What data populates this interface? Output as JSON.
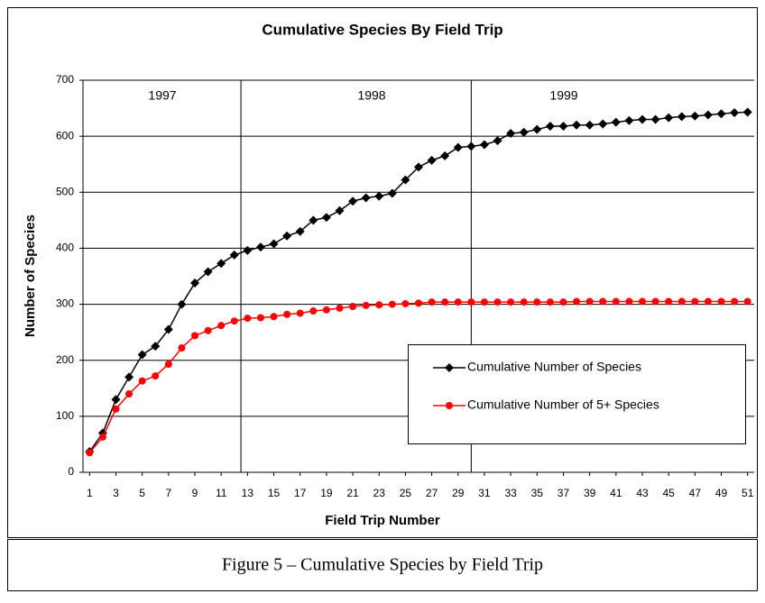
{
  "chart_data": {
    "type": "line",
    "title": "Cumulative Species By Field Trip",
    "x_label": "Field Trip Number",
    "y_label": "Number of Species",
    "caption": "Figure 5 – Cumulative Species by Field Trip",
    "x": [
      1,
      2,
      3,
      4,
      5,
      6,
      7,
      8,
      9,
      10,
      11,
      12,
      13,
      14,
      15,
      16,
      17,
      18,
      19,
      20,
      21,
      22,
      23,
      24,
      25,
      26,
      27,
      28,
      29,
      30,
      31,
      32,
      33,
      34,
      35,
      36,
      37,
      38,
      39,
      40,
      41,
      42,
      43,
      44,
      45,
      46,
      47,
      48,
      49,
      50,
      51
    ],
    "series": [
      {
        "name": "Cumulative Number of Species",
        "color": "#000000",
        "marker": "diamond",
        "values": [
          37,
          70,
          130,
          170,
          210,
          225,
          255,
          300,
          338,
          358,
          373,
          388,
          396,
          402,
          408,
          422,
          430,
          450,
          455,
          467,
          484,
          490,
          493,
          498,
          522,
          545,
          557,
          565,
          580,
          582,
          585,
          592,
          605,
          607,
          612,
          618,
          618,
          620,
          620,
          622,
          625,
          628,
          630,
          630,
          633,
          635,
          636,
          638,
          640,
          642,
          643
        ]
      },
      {
        "name": "Cumulative Number of 5+ Species",
        "color": "#ff0000",
        "marker": "circle",
        "values": [
          35,
          63,
          113,
          140,
          163,
          172,
          193,
          222,
          244,
          253,
          262,
          270,
          275,
          276,
          278,
          282,
          284,
          288,
          290,
          293,
          296,
          298,
          299,
          300,
          301,
          302,
          304,
          304,
          304,
          304,
          304,
          304,
          304,
          304,
          304,
          304,
          304,
          305,
          305,
          305,
          305,
          305,
          305,
          305,
          305,
          305,
          305,
          305,
          305,
          305,
          305
        ]
      }
    ],
    "xlim": [
      0.5,
      51.5
    ],
    "xticks": [
      1,
      3,
      5,
      7,
      9,
      11,
      13,
      15,
      17,
      19,
      21,
      23,
      25,
      27,
      29,
      31,
      33,
      35,
      37,
      39,
      41,
      43,
      45,
      47,
      49,
      51
    ],
    "ylim": [
      0,
      700
    ],
    "yticks": [
      0,
      100,
      200,
      300,
      400,
      500,
      600,
      700
    ],
    "grid": true,
    "legend": "lower right",
    "year_dividers": [
      12.5,
      30
    ],
    "year_labels": [
      "1997",
      "1998",
      "1999"
    ]
  }
}
